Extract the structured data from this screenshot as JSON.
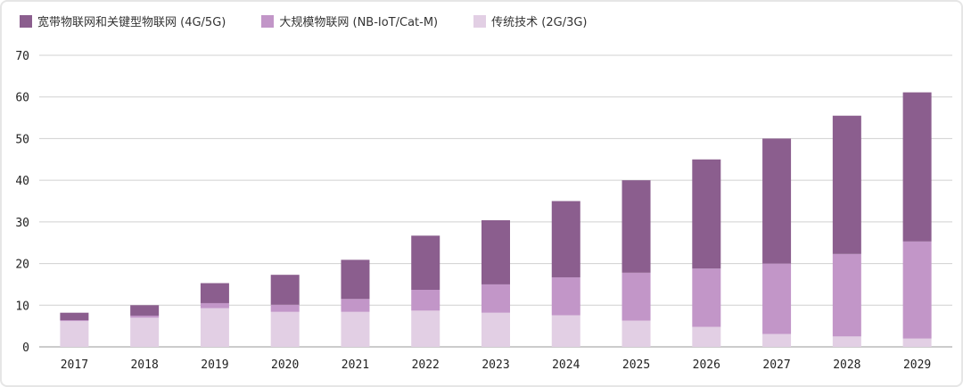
{
  "chart_data": {
    "type": "bar",
    "stacked": true,
    "title": "",
    "xlabel": "",
    "ylabel": "",
    "ylim": [
      0,
      70
    ],
    "yticks": [
      0,
      10,
      20,
      30,
      40,
      50,
      60,
      70
    ],
    "grid": true,
    "legend_position": "top-left",
    "categories": [
      "2017",
      "2018",
      "2019",
      "2020",
      "2021",
      "2022",
      "2023",
      "2024",
      "2025",
      "2026",
      "2027",
      "2028",
      "2029"
    ],
    "series": [
      {
        "name": "传统技术 (2G/3G)",
        "color": "#e2cfe4",
        "values": [
          6.2,
          7.0,
          9.3,
          8.4,
          8.4,
          8.7,
          8.2,
          7.6,
          6.3,
          4.8,
          3.1,
          2.5,
          2.0
        ]
      },
      {
        "name": "大规模物联网 (NB-IoT/Cat-M)",
        "color": "#c296c8",
        "values": [
          0.2,
          0.5,
          1.2,
          1.7,
          3.1,
          5.0,
          6.8,
          9.1,
          11.5,
          14.0,
          16.9,
          19.8,
          23.3
        ]
      },
      {
        "name": "宽带物联网和关键型物联网 (4G/5G)",
        "color": "#8b5e8e",
        "values": [
          1.8,
          2.5,
          4.8,
          7.2,
          9.4,
          13.0,
          15.4,
          18.3,
          22.2,
          26.2,
          30.0,
          33.2,
          35.8
        ]
      }
    ],
    "legend_order": [
      "宽带物联网和关键型物联网 (4G/5G)",
      "大规模物联网 (NB-IoT/Cat-M)",
      "传统技术 (2G/3G)"
    ]
  }
}
